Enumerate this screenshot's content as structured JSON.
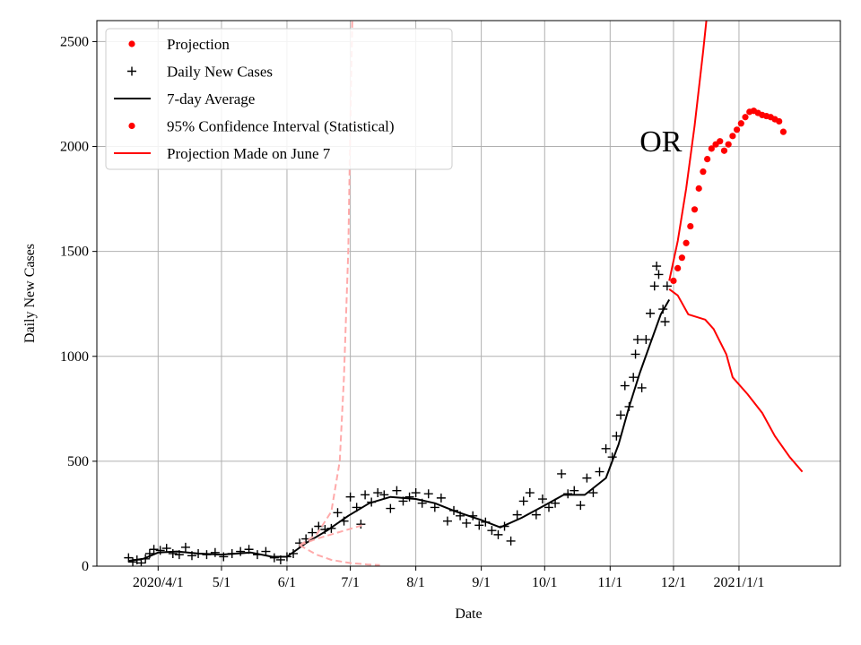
{
  "chart_data": {
    "type": "line",
    "xlabel": "Date",
    "ylabel": "Daily New Cases",
    "ylim": [
      0,
      2600
    ],
    "xlim": [
      "2020-03-03",
      "2021-02-18"
    ],
    "grid": true,
    "legend_placement": "top-left",
    "x_ticks": [
      {
        "date": "2020-04-01",
        "label": "2020/4/1"
      },
      {
        "date": "2020-05-01",
        "label": "5/1"
      },
      {
        "date": "2020-06-01",
        "label": "6/1"
      },
      {
        "date": "2020-07-01",
        "label": "7/1"
      },
      {
        "date": "2020-08-01",
        "label": "8/1"
      },
      {
        "date": "2020-09-01",
        "label": "9/1"
      },
      {
        "date": "2020-10-01",
        "label": "10/1"
      },
      {
        "date": "2020-11-01",
        "label": "11/1"
      },
      {
        "date": "2020-12-01",
        "label": "12/1"
      },
      {
        "date": "2021-01-01",
        "label": "2021/1/1"
      }
    ],
    "y_ticks": [
      0,
      500,
      1000,
      1500,
      2000,
      2500
    ],
    "annotation": {
      "text": "OR",
      "x": "2020-11-25",
      "y": 2010
    },
    "legend": [
      {
        "label": "Projection",
        "marker": "dot",
        "color": "#ff0000"
      },
      {
        "label": "Daily New Cases",
        "marker": "plus",
        "color": "#000000"
      },
      {
        "label": "7-day Average",
        "marker": "line",
        "color": "#000000"
      },
      {
        "label": "95% Confidence Interval (Statistical)",
        "marker": "dot",
        "color": "#ff0000"
      },
      {
        "label": "Projection Made on June 7",
        "marker": "line",
        "color": "#ff0000"
      }
    ],
    "series": [
      {
        "name": "Daily New Cases",
        "style": "plus",
        "color": "#000000",
        "points": [
          [
            "2020-03-18",
            40
          ],
          [
            "2020-03-20",
            20
          ],
          [
            "2020-03-22",
            30
          ],
          [
            "2020-03-24",
            15
          ],
          [
            "2020-03-26",
            35
          ],
          [
            "2020-03-28",
            60
          ],
          [
            "2020-03-30",
            80
          ],
          [
            "2020-04-02",
            75
          ],
          [
            "2020-04-05",
            85
          ],
          [
            "2020-04-08",
            60
          ],
          [
            "2020-04-11",
            55
          ],
          [
            "2020-04-14",
            90
          ],
          [
            "2020-04-17",
            50
          ],
          [
            "2020-04-20",
            60
          ],
          [
            "2020-04-24",
            55
          ],
          [
            "2020-04-28",
            65
          ],
          [
            "2020-05-02",
            45
          ],
          [
            "2020-05-06",
            60
          ],
          [
            "2020-05-10",
            70
          ],
          [
            "2020-05-14",
            80
          ],
          [
            "2020-05-18",
            55
          ],
          [
            "2020-05-22",
            70
          ],
          [
            "2020-05-26",
            40
          ],
          [
            "2020-05-29",
            30
          ],
          [
            "2020-06-01",
            45
          ],
          [
            "2020-06-04",
            60
          ],
          [
            "2020-06-07",
            110
          ],
          [
            "2020-06-10",
            130
          ],
          [
            "2020-06-13",
            160
          ],
          [
            "2020-06-16",
            190
          ],
          [
            "2020-06-19",
            175
          ],
          [
            "2020-06-22",
            180
          ],
          [
            "2020-06-25",
            255
          ],
          [
            "2020-06-28",
            215
          ],
          [
            "2020-07-01",
            330
          ],
          [
            "2020-07-04",
            280
          ],
          [
            "2020-07-06",
            200
          ],
          [
            "2020-07-08",
            340
          ],
          [
            "2020-07-11",
            305
          ],
          [
            "2020-07-14",
            350
          ],
          [
            "2020-07-17",
            340
          ],
          [
            "2020-07-20",
            275
          ],
          [
            "2020-07-23",
            360
          ],
          [
            "2020-07-26",
            310
          ],
          [
            "2020-07-29",
            330
          ],
          [
            "2020-08-01",
            350
          ],
          [
            "2020-08-04",
            300
          ],
          [
            "2020-08-07",
            345
          ],
          [
            "2020-08-10",
            280
          ],
          [
            "2020-08-13",
            325
          ],
          [
            "2020-08-16",
            215
          ],
          [
            "2020-08-19",
            265
          ],
          [
            "2020-08-22",
            240
          ],
          [
            "2020-08-25",
            205
          ],
          [
            "2020-08-28",
            240
          ],
          [
            "2020-08-31",
            195
          ],
          [
            "2020-09-03",
            210
          ],
          [
            "2020-09-06",
            170
          ],
          [
            "2020-09-09",
            150
          ],
          [
            "2020-09-12",
            190
          ],
          [
            "2020-09-15",
            120
          ],
          [
            "2020-09-18",
            245
          ],
          [
            "2020-09-21",
            310
          ],
          [
            "2020-09-24",
            350
          ],
          [
            "2020-09-27",
            245
          ],
          [
            "2020-09-30",
            320
          ],
          [
            "2020-10-03",
            280
          ],
          [
            "2020-10-06",
            300
          ],
          [
            "2020-10-09",
            440
          ],
          [
            "2020-10-12",
            345
          ],
          [
            "2020-10-15",
            360
          ],
          [
            "2020-10-18",
            290
          ],
          [
            "2020-10-21",
            420
          ],
          [
            "2020-10-24",
            350
          ],
          [
            "2020-10-27",
            450
          ],
          [
            "2020-10-30",
            560
          ],
          [
            "2020-11-02",
            520
          ],
          [
            "2020-11-04",
            620
          ],
          [
            "2020-11-06",
            720
          ],
          [
            "2020-11-08",
            860
          ],
          [
            "2020-11-10",
            760
          ],
          [
            "2020-11-12",
            900
          ],
          [
            "2020-11-13",
            1010
          ],
          [
            "2020-11-14",
            1080
          ],
          [
            "2020-11-16",
            850
          ],
          [
            "2020-11-18",
            1080
          ],
          [
            "2020-11-20",
            1205
          ],
          [
            "2020-11-22",
            1335
          ],
          [
            "2020-11-23",
            1430
          ],
          [
            "2020-11-24",
            1390
          ],
          [
            "2020-11-26",
            1225
          ],
          [
            "2020-11-27",
            1165
          ],
          [
            "2020-11-28",
            1335
          ]
        ]
      },
      {
        "name": "7-day Average",
        "style": "line",
        "color": "#000000",
        "points": [
          [
            "2020-03-18",
            25
          ],
          [
            "2020-03-25",
            35
          ],
          [
            "2020-04-01",
            65
          ],
          [
            "2020-04-10",
            70
          ],
          [
            "2020-04-20",
            60
          ],
          [
            "2020-05-01",
            55
          ],
          [
            "2020-05-15",
            65
          ],
          [
            "2020-05-25",
            45
          ],
          [
            "2020-06-01",
            45
          ],
          [
            "2020-06-10",
            110
          ],
          [
            "2020-06-20",
            170
          ],
          [
            "2020-06-30",
            240
          ],
          [
            "2020-07-10",
            300
          ],
          [
            "2020-07-20",
            330
          ],
          [
            "2020-08-01",
            320
          ],
          [
            "2020-08-10",
            300
          ],
          [
            "2020-08-20",
            260
          ],
          [
            "2020-09-01",
            220
          ],
          [
            "2020-09-10",
            185
          ],
          [
            "2020-09-20",
            230
          ],
          [
            "2020-10-01",
            290
          ],
          [
            "2020-10-10",
            340
          ],
          [
            "2020-10-20",
            340
          ],
          [
            "2020-10-30",
            420
          ],
          [
            "2020-11-05",
            580
          ],
          [
            "2020-11-10",
            760
          ],
          [
            "2020-11-15",
            920
          ],
          [
            "2020-11-20",
            1060
          ],
          [
            "2020-11-25",
            1200
          ],
          [
            "2020-11-29",
            1270
          ]
        ]
      },
      {
        "name": "Projection",
        "style": "dots",
        "color": "#ff0000",
        "points": [
          [
            "2020-12-01",
            1360
          ],
          [
            "2020-12-03",
            1420
          ],
          [
            "2020-12-05",
            1470
          ],
          [
            "2020-12-07",
            1540
          ],
          [
            "2020-12-09",
            1620
          ],
          [
            "2020-12-11",
            1700
          ],
          [
            "2020-12-13",
            1800
          ],
          [
            "2020-12-15",
            1880
          ],
          [
            "2020-12-17",
            1940
          ],
          [
            "2020-12-19",
            1990
          ],
          [
            "2020-12-21",
            2010
          ],
          [
            "2020-12-23",
            2025
          ],
          [
            "2020-12-25",
            1980
          ],
          [
            "2020-12-27",
            2010
          ],
          [
            "2020-12-29",
            2050
          ],
          [
            "2020-12-31",
            2080
          ],
          [
            "2021-01-02",
            2110
          ],
          [
            "2021-01-04",
            2140
          ],
          [
            "2021-01-06",
            2165
          ],
          [
            "2021-01-08",
            2170
          ],
          [
            "2021-01-10",
            2160
          ],
          [
            "2021-01-12",
            2150
          ],
          [
            "2021-01-14",
            2145
          ],
          [
            "2021-01-16",
            2140
          ],
          [
            "2021-01-18",
            2130
          ],
          [
            "2021-01-20",
            2120
          ],
          [
            "2021-01-22",
            2070
          ]
        ]
      },
      {
        "name": "95% Confidence Interval upper",
        "style": "line",
        "color": "#ff0000",
        "points": [
          [
            "2020-11-29",
            1360
          ],
          [
            "2020-12-03",
            1550
          ],
          [
            "2020-12-07",
            1800
          ],
          [
            "2020-12-11",
            2100
          ],
          [
            "2020-12-15",
            2450
          ],
          [
            "2020-12-17",
            2640
          ]
        ]
      },
      {
        "name": "95% Confidence Interval lower",
        "style": "line",
        "color": "#ff0000",
        "points": [
          [
            "2020-11-29",
            1320
          ],
          [
            "2020-12-03",
            1290
          ],
          [
            "2020-12-08",
            1200
          ],
          [
            "2020-12-16",
            1175
          ],
          [
            "2020-12-20",
            1130
          ],
          [
            "2020-12-26",
            1010
          ],
          [
            "2020-12-29",
            900
          ],
          [
            "2021-01-05",
            820
          ],
          [
            "2021-01-12",
            730
          ],
          [
            "2021-01-18",
            620
          ],
          [
            "2021-01-25",
            520
          ],
          [
            "2021-01-31",
            450
          ]
        ]
      },
      {
        "name": "Projection Made on June 7 upper",
        "style": "dashed",
        "color": "#ffaaaa",
        "points": [
          [
            "2020-06-07",
            100
          ],
          [
            "2020-06-15",
            150
          ],
          [
            "2020-06-22",
            260
          ],
          [
            "2020-06-26",
            500
          ],
          [
            "2020-06-28",
            900
          ],
          [
            "2020-06-30",
            1500
          ],
          [
            "2020-07-01",
            2100
          ],
          [
            "2020-07-02",
            2650
          ]
        ]
      },
      {
        "name": "Projection Made on June 7 middle",
        "style": "dashed",
        "color": "#ffaaaa",
        "points": [
          [
            "2020-06-07",
            100
          ],
          [
            "2020-06-15",
            130
          ],
          [
            "2020-06-25",
            160
          ],
          [
            "2020-07-05",
            190
          ],
          [
            "2020-07-08",
            200
          ]
        ]
      },
      {
        "name": "Projection Made on June 7 lower",
        "style": "dashed",
        "color": "#ffaaaa",
        "points": [
          [
            "2020-06-07",
            100
          ],
          [
            "2020-06-15",
            55
          ],
          [
            "2020-06-22",
            30
          ],
          [
            "2020-07-01",
            15
          ],
          [
            "2020-07-09",
            8
          ],
          [
            "2020-07-15",
            5
          ]
        ]
      }
    ]
  }
}
